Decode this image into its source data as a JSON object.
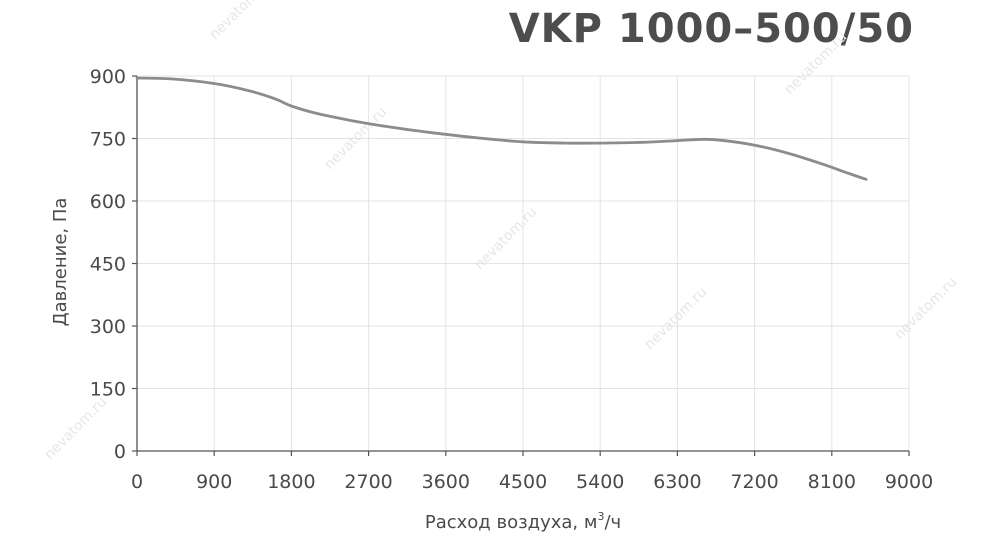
{
  "chart_data": {
    "type": "line",
    "title": "VKP 1000–500/50",
    "xlabel": "Расход воздуха, м",
    "xlabel_sup": "3",
    "xlabel_suffix": "/ч",
    "ylabel": "Давление, Па",
    "xlim": [
      0,
      9000
    ],
    "ylim": [
      0,
      900
    ],
    "x_ticks": [
      0,
      900,
      1800,
      2700,
      3600,
      4500,
      5400,
      6300,
      7200,
      8100,
      9000
    ],
    "y_ticks": [
      0,
      150,
      300,
      450,
      600,
      750,
      900
    ],
    "grid": true,
    "series": [
      {
        "color": "#8c8c8c",
        "x": [
          0,
          400,
          900,
          1300,
          1600,
          1800,
          2100,
          2500,
          2900,
          3400,
          4000,
          4500,
          5000,
          5400,
          5900,
          6300,
          6600,
          6800,
          7200,
          7600,
          8000,
          8300,
          8500
        ],
        "y": [
          895,
          893,
          882,
          865,
          846,
          828,
          810,
          793,
          779,
          765,
          751,
          742,
          739,
          739,
          741,
          745,
          748,
          746,
          734,
          714,
          688,
          666,
          652
        ]
      }
    ]
  },
  "watermark": "nevatom.ru"
}
